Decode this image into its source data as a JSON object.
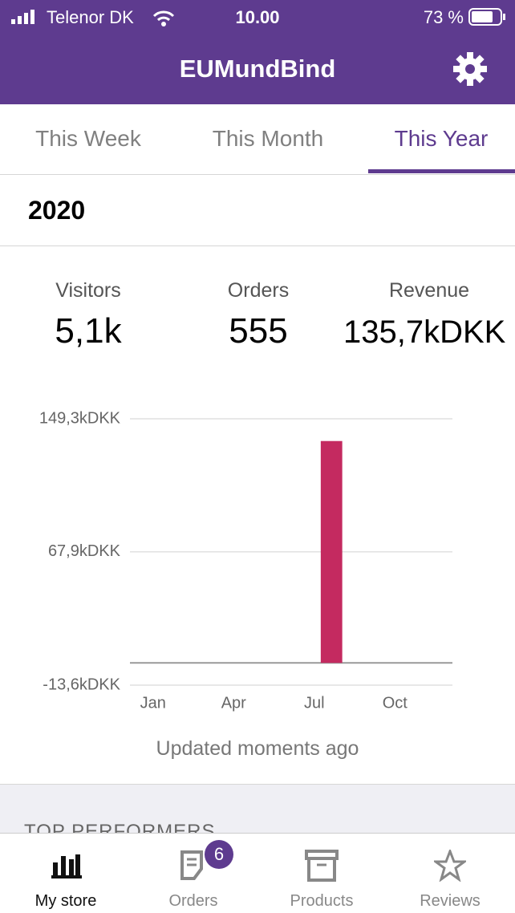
{
  "status_bar": {
    "carrier": "Telenor DK",
    "time": "10.00",
    "battery": "73 %"
  },
  "header": {
    "title": "EUMundBind"
  },
  "tabs": [
    "This Week",
    "This Month",
    "This Year"
  ],
  "period": "2020",
  "stats": [
    {
      "label": "Visitors",
      "value": "5,1k"
    },
    {
      "label": "Orders",
      "value": "555"
    },
    {
      "label": "Revenue",
      "value": "135,7kDKK"
    }
  ],
  "chart_data": {
    "type": "bar",
    "categories": [
      "Jan",
      null,
      null,
      "Apr",
      null,
      null,
      "Jul",
      null,
      null,
      "Oct",
      null,
      null
    ],
    "values": [
      0,
      0,
      0,
      0,
      0,
      0,
      0,
      135.7,
      0,
      0,
      0,
      0
    ],
    "color": "#c42a60",
    "ylim": [
      -13.6,
      149.3
    ],
    "yticks": [
      {
        "value": -13.6,
        "label": "-13,6kDKK"
      },
      {
        "value": 67.9,
        "label": "67,9kDKK"
      },
      {
        "value": 149.3,
        "label": "149,3kDKK"
      }
    ],
    "grid": true
  },
  "updated": "Updated moments ago",
  "section_title": "TOP PERFORMERS",
  "nav": [
    {
      "label": "My store"
    },
    {
      "label": "Orders",
      "badge": "6"
    },
    {
      "label": "Products"
    },
    {
      "label": "Reviews"
    }
  ]
}
